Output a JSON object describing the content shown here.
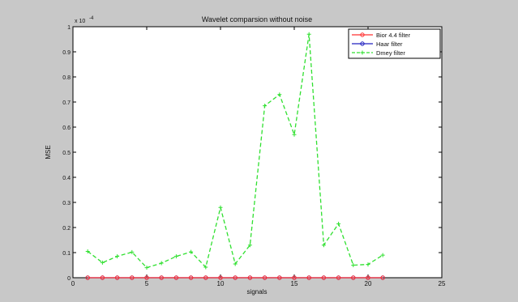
{
  "chart_data": {
    "type": "line",
    "title": "Wavelet comparsion without noise",
    "xlabel": "signals",
    "ylabel": "MSE",
    "y_exponent_label": "x 10",
    "y_exponent_power": "-4",
    "xlim": [
      0,
      25
    ],
    "ylim": [
      0,
      1
    ],
    "x_ticks": [
      "0",
      "5",
      "10",
      "15",
      "20",
      "25"
    ],
    "y_ticks": [
      "0",
      "0.1",
      "0.2",
      "0.3",
      "0.4",
      "0.5",
      "0.6",
      "0.7",
      "0.8",
      "0.9",
      "1"
    ],
    "x": [
      1,
      2,
      3,
      4,
      5,
      6,
      7,
      8,
      9,
      10,
      11,
      12,
      13,
      14,
      15,
      16,
      17,
      18,
      19,
      20,
      21
    ],
    "grid": false,
    "legend_position": "top-right",
    "series": [
      {
        "name": "Bior 4.4 filter",
        "color": "#ff3030",
        "marker": "circle",
        "dash": "solid",
        "values": [
          0,
          0,
          0,
          0,
          0,
          0,
          0,
          0,
          0,
          0,
          0,
          0,
          0,
          0,
          0,
          0,
          0,
          0,
          0,
          0,
          0
        ]
      },
      {
        "name": "Haar filter",
        "color": "#2020c0",
        "marker": "circle",
        "dash": "solid",
        "values": [
          0,
          0,
          0,
          0,
          0,
          0,
          0,
          0,
          0,
          0,
          0,
          0,
          0,
          0,
          0,
          0,
          0,
          0,
          0,
          0,
          0
        ]
      },
      {
        "name": "Dmey filter",
        "color": "#30e030",
        "marker": "plus",
        "dash": "dashed",
        "values": [
          0.105,
          0.06,
          0.085,
          0.102,
          0.04,
          0.058,
          0.085,
          0.103,
          0.042,
          0.28,
          0.055,
          0.13,
          0.685,
          0.73,
          0.57,
          0.97,
          0.13,
          0.215,
          0.05,
          0.053,
          0.09
        ]
      }
    ]
  }
}
